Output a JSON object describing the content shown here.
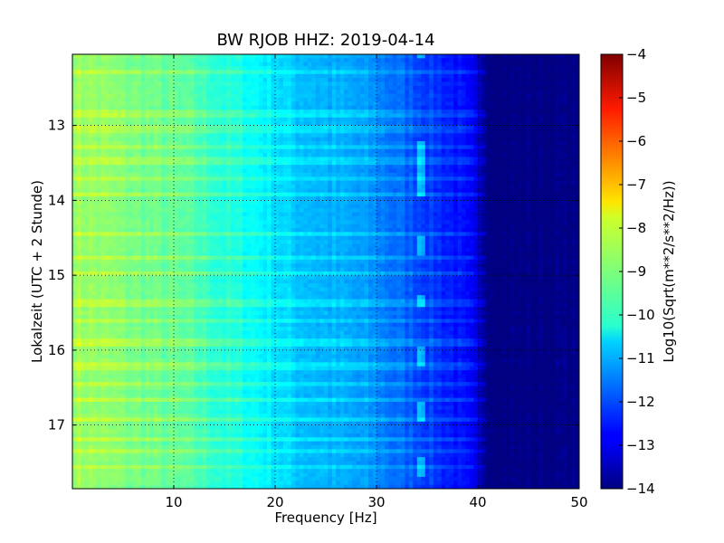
{
  "chart_data": {
    "type": "heatmap",
    "title": "BW RJOB HHZ: 2019-04-14",
    "xlabel": "Frequency [Hz]",
    "ylabel": "Lokalzeit (UTC + 2 Stunde)",
    "xlim": [
      0,
      50
    ],
    "ylim": [
      12.05,
      17.85
    ],
    "y_inverted": true,
    "x_ticks": [
      10,
      20,
      30,
      40,
      50
    ],
    "y_ticks": [
      13,
      14,
      15,
      16,
      17
    ],
    "grid": true,
    "colormap": "jet",
    "colorbar": {
      "label": "Log10(Sqrt(m**2/s**2/Hz))",
      "range": [
        -14,
        -4
      ],
      "ticks": [
        -4,
        -5,
        -6,
        -7,
        -8,
        -9,
        -10,
        -11,
        -12,
        -13,
        -14
      ]
    },
    "psd_profile": {
      "frequency_hz": [
        0,
        2,
        5,
        8,
        10,
        12,
        15,
        18,
        20,
        22,
        25,
        28,
        30,
        32,
        34,
        36,
        38,
        39.5,
        40.5,
        42,
        50
      ],
      "log10_psd": [
        -8.7,
        -8.8,
        -9.0,
        -9.2,
        -9.3,
        -9.5,
        -9.9,
        -10.2,
        -10.5,
        -10.8,
        -11.0,
        -11.2,
        -11.4,
        -11.7,
        -12.0,
        -12.3,
        -12.6,
        -13.0,
        -13.7,
        -14.0,
        -14.0
      ]
    },
    "bright_time_lines": [
      12.28,
      12.85,
      13.05,
      13.28,
      13.48,
      13.72,
      13.92,
      14.45,
      14.75,
      14.98,
      15.38,
      15.62,
      15.9,
      16.22,
      16.45,
      16.65,
      16.93,
      17.18,
      17.35,
      17.55
    ],
    "tonal_line_hz": 34.3,
    "tonal_line_segments": [
      [
        12.05,
        12.12
      ],
      [
        13.2,
        13.95
      ],
      [
        14.5,
        14.75
      ],
      [
        15.25,
        15.45
      ],
      [
        15.95,
        16.2
      ],
      [
        16.7,
        16.95
      ],
      [
        17.45,
        17.7
      ]
    ]
  }
}
